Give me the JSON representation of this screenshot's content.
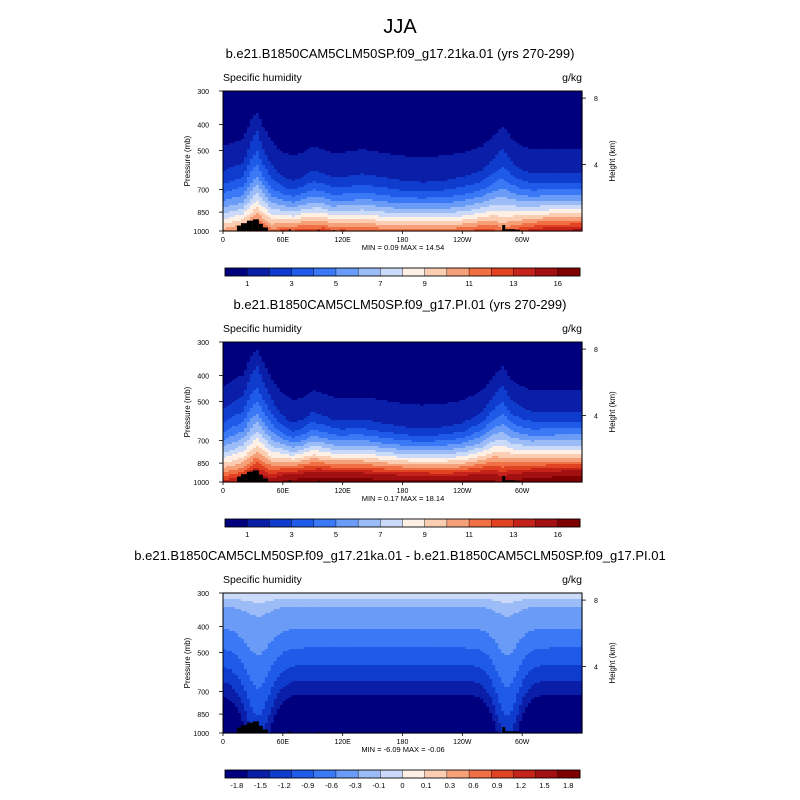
{
  "figure": {
    "title": "JJA"
  },
  "colors": {
    "scale_abs": [
      "#00007f",
      "#0a1ea8",
      "#0f3ccc",
      "#1f5ae8",
      "#3a78f5",
      "#6a9cf7",
      "#9cbcf8",
      "#cbdaf8",
      "#fff0e6",
      "#fbcdb3",
      "#f6a07a",
      "#f06f45",
      "#e14322",
      "#c4221a",
      "#a31012",
      "#7f0000"
    ],
    "scale_diff": [
      "#00007f",
      "#0a1ea8",
      "#0f3ccc",
      "#1f5ae8",
      "#3a78f5",
      "#6a9cf7",
      "#9cbcf8",
      "#cbdaf8",
      "#fff0e6",
      "#fbcdb3",
      "#f6a07a",
      "#f06f45",
      "#e14322",
      "#c4221a",
      "#a31012",
      "#7f0000"
    ],
    "terrain": "#000000"
  },
  "chart_data": [
    {
      "type": "heatmap",
      "title": "b.e21.B1850CAM5CLM50SP.f09_g17.21ka.01 (yrs 270-299)",
      "left_label": "Specific humidity",
      "right_label": "g/kg",
      "ylabel": "Pressure (mb)",
      "y2label": "Height (km)",
      "yticks": [
        "300",
        "400",
        "500",
        "700",
        "850",
        "1000"
      ],
      "ytick_values": [
        300,
        400,
        500,
        700,
        850,
        1000
      ],
      "y2ticks": [
        "8",
        "4"
      ],
      "y2tick_values": [
        8,
        4
      ],
      "xticks": [
        "0",
        "60E",
        "120E",
        "180",
        "120W",
        "60W"
      ],
      "xtick_values": [
        0,
        60,
        120,
        180,
        240,
        300
      ],
      "xlim": [
        0,
        360
      ],
      "ylim": [
        1000,
        300
      ],
      "stats": "MIN =   0.09  MAX =  14.54",
      "min": 0.09,
      "max": 14.54,
      "colorbar_labels": [
        "1",
        "3",
        "5",
        "7",
        "9",
        "11",
        "13",
        "16"
      ],
      "kind": "abs",
      "surface_q": 11,
      "x": [
        0,
        20,
        28,
        34,
        40,
        50,
        60,
        70,
        80,
        90,
        100,
        110,
        120,
        130,
        140,
        150,
        160,
        180,
        200,
        220,
        240,
        260,
        272,
        280,
        285,
        290,
        300,
        310,
        320,
        340,
        360
      ],
      "surface": [
        10.5,
        11.5,
        12.5,
        13.5,
        12.8,
        11.5,
        12.5,
        12.2,
        12.8,
        12.5,
        13.0,
        12.0,
        12.5,
        12.0,
        12.2,
        12.0,
        11.8,
        11.5,
        11.8,
        11.5,
        12.0,
        12.5,
        12.5,
        11.5,
        12.0,
        12.5,
        13.0,
        13.5,
        14.0,
        14.2,
        14.5
      ],
      "moist_top": [
        560,
        520,
        420,
        380,
        450,
        540,
        600,
        620,
        600,
        560,
        580,
        600,
        600,
        590,
        580,
        590,
        600,
        620,
        630,
        620,
        600,
        560,
        500,
        450,
        480,
        520,
        560,
        580,
        580,
        580,
        580
      ]
    },
    {
      "type": "heatmap",
      "title": "b.e21.B1850CAM5CLM50SP.f09_g17.PI.01 (yrs 270-299)",
      "left_label": "Specific humidity",
      "right_label": "g/kg",
      "ylabel": "Pressure (mb)",
      "y2label": "Height (km)",
      "yticks": [
        "300",
        "400",
        "500",
        "700",
        "850",
        "1000"
      ],
      "ytick_values": [
        300,
        400,
        500,
        700,
        850,
        1000
      ],
      "y2ticks": [
        "8",
        "4"
      ],
      "y2tick_values": [
        8,
        4
      ],
      "xticks": [
        "0",
        "60E",
        "120E",
        "180",
        "120W",
        "60W"
      ],
      "xtick_values": [
        0,
        60,
        120,
        180,
        240,
        300
      ],
      "xlim": [
        0,
        360
      ],
      "ylim": [
        1000,
        300
      ],
      "stats": "MIN =   0.17  MAX =  18.14",
      "min": 0.17,
      "max": 18.14,
      "colorbar_labels": [
        "1",
        "3",
        "5",
        "7",
        "9",
        "11",
        "13",
        "16"
      ],
      "kind": "abs",
      "x": [
        0,
        20,
        28,
        34,
        40,
        50,
        60,
        70,
        80,
        90,
        100,
        110,
        120,
        130,
        140,
        150,
        160,
        180,
        200,
        220,
        240,
        260,
        272,
        280,
        285,
        290,
        300,
        310,
        320,
        340,
        360
      ],
      "surface": [
        13.5,
        14.5,
        15.5,
        16.5,
        15.8,
        15.0,
        16.5,
        17.0,
        17.5,
        17.5,
        17.8,
        17.5,
        17.8,
        17.5,
        17.5,
        17.2,
        17.0,
        16.8,
        16.8,
        16.5,
        16.5,
        16.8,
        16.5,
        15.5,
        16.0,
        16.5,
        17.0,
        17.5,
        17.8,
        18.0,
        18.1
      ],
      "moist_top": [
        500,
        440,
        360,
        330,
        380,
        470,
        540,
        580,
        560,
        520,
        540,
        560,
        570,
        560,
        560,
        570,
        580,
        600,
        610,
        600,
        580,
        520,
        440,
        400,
        430,
        470,
        500,
        520,
        520,
        520,
        520
      ]
    },
    {
      "type": "heatmap",
      "title": "b.e21.B1850CAM5CLM50SP.f09_g17.21ka.01 - b.e21.B1850CAM5CLM50SP.f09_g17.PI.01",
      "left_label": "Specific humidity",
      "right_label": "g/kg",
      "ylabel": "Pressure (mb)",
      "y2label": "Height (km)",
      "yticks": [
        "300",
        "400",
        "500",
        "700",
        "850",
        "1000"
      ],
      "ytick_values": [
        300,
        400,
        500,
        700,
        850,
        1000
      ],
      "y2ticks": [
        "8",
        "4"
      ],
      "y2tick_values": [
        8,
        4
      ],
      "xticks": [
        "0",
        "60E",
        "120E",
        "180",
        "120W",
        "60W"
      ],
      "xtick_values": [
        0,
        60,
        120,
        180,
        240,
        300
      ],
      "xlim": [
        0,
        360
      ],
      "ylim": [
        1000,
        300
      ],
      "stats": "MIN =  -6.09  MAX =  -0.06",
      "min": -6.09,
      "max": -0.06,
      "colorbar_labels": [
        "-1.8",
        "-1.5",
        "-1.2",
        "-0.9",
        "-0.6",
        "-0.3",
        "-0.1",
        "0",
        "0.1",
        "0.3",
        "0.6",
        "0.9",
        "1.2",
        "1.5",
        "1.8"
      ],
      "kind": "diff"
    }
  ]
}
